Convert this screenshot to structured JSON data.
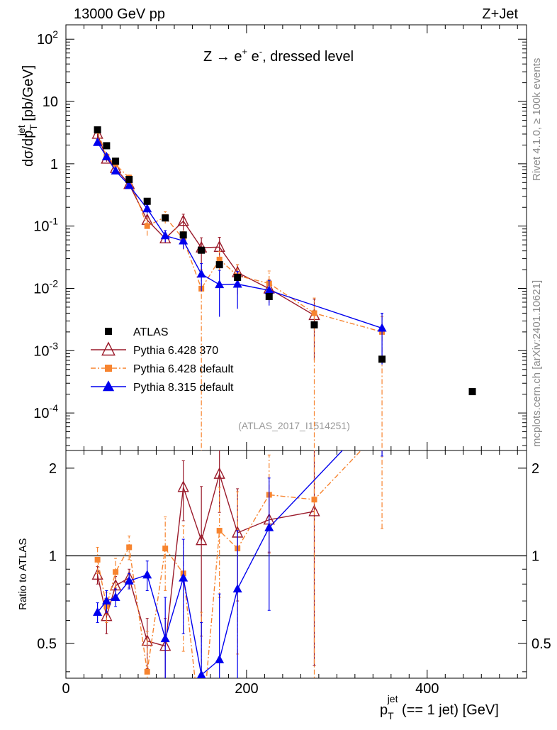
{
  "header": {
    "left": "13000 GeV pp",
    "right": "Z+Jet"
  },
  "side": {
    "rivet": "Rivet 4.1.0, ≥ 100k events",
    "mcplots": "mcplots.cern.ch [arXiv:2401.10621]"
  },
  "watermark": "(ATLAS_2017_I1514251)",
  "process": {
    "prefix": "Z → e",
    "plus": "+",
    "mid": " e",
    "minus": "-",
    "suffix": ", dressed level"
  },
  "axes": {
    "ylabel_main": {
      "a": "dσ/dp",
      "sup": "jet",
      "sub": "T",
      "b": " [pb/GeV]"
    },
    "ylabel_ratio": "Ratio to ATLAS",
    "xlabel": {
      "p": "p",
      "sup": "jet",
      "sub": "T",
      "rest": " (== 1 jet) [GeV]"
    },
    "xticks": [
      "0",
      "200",
      "400"
    ],
    "yticks_main": [
      {
        "v": 100,
        "base": "10",
        "exp": "2"
      },
      {
        "v": 10,
        "base": "10",
        "exp": ""
      },
      {
        "v": 1,
        "base": "1",
        "exp": ""
      },
      {
        "v": 0.1,
        "base": "10",
        "exp": "-1"
      },
      {
        "v": 0.01,
        "base": "10",
        "exp": "-2"
      },
      {
        "v": 0.001,
        "base": "10",
        "exp": "-3"
      },
      {
        "v": 0.0001,
        "base": "10",
        "exp": "-4"
      }
    ],
    "yticks_ratio": [
      "0.5",
      "1",
      "2"
    ]
  },
  "legend": [
    {
      "label": "ATLAS",
      "color": "#000000"
    },
    {
      "label": "Pythia 6.428 370",
      "color": "#9a1a2a"
    },
    {
      "label": "Pythia 6.428 default",
      "color": "#f7842f"
    },
    {
      "label": "Pythia 8.315 default",
      "color": "#0000ee"
    }
  ],
  "chart_data": {
    "type": "scatter",
    "xlim": [
      0,
      510
    ],
    "ylim_main": [
      2.5e-05,
      170
    ],
    "ylim_ratio": [
      0.38,
      2.3
    ],
    "yscale": "log",
    "series": [
      {
        "name": "ATLAS",
        "x": [
          35,
          45,
          55,
          70,
          90,
          110,
          130,
          150,
          170,
          190,
          225,
          275,
          350,
          450
        ],
        "y": [
          3.5,
          1.95,
          1.1,
          0.56,
          0.25,
          0.135,
          0.072,
          0.041,
          0.024,
          0.015,
          0.0074,
          0.0026,
          0.00073,
          0.00022
        ]
      },
      {
        "name": "Pythia 6.428 370",
        "x": [
          35,
          45,
          55,
          70,
          90,
          110,
          130,
          150,
          170,
          190,
          225,
          275
        ],
        "y": [
          3.0,
          1.2,
          0.85,
          0.47,
          0.125,
          0.063,
          0.12,
          0.045,
          0.046,
          0.018,
          0.0099,
          0.0037
        ],
        "err_lo": [
          0.4,
          0.12,
          0.1,
          0.05,
          0.02,
          0.01,
          0.035,
          0.025,
          0.025,
          0.006,
          0.004,
          0.003
        ],
        "err_hi": [
          0.4,
          0.12,
          0.1,
          0.05,
          0.02,
          0.01,
          0.035,
          0.02,
          0.02,
          0.006,
          0.004,
          0.003
        ],
        "ratio": [
          0.86,
          0.62,
          0.79,
          0.84,
          0.51,
          0.49,
          1.72,
          1.13,
          1.91,
          1.2,
          1.33,
          1.42
        ],
        "ratio_err_lo": [
          0.06,
          0.08,
          0.06,
          0.06,
          0.1,
          0.12,
          0.4,
          0.6,
          0.5,
          0.5,
          0.3,
          1.0
        ],
        "ratio_err_hi": [
          0.06,
          0.08,
          0.06,
          0.06,
          0.1,
          0.12,
          0.4,
          0.6,
          0.5,
          0.5,
          0.3,
          1.0
        ]
      },
      {
        "name": "Pythia 6.428 default",
        "x": [
          35,
          45,
          55,
          70,
          90,
          110,
          130,
          150,
          170,
          190,
          225,
          275,
          350
        ],
        "y": [
          3.4,
          1.3,
          0.97,
          0.6,
          0.1,
          0.14,
          0.062,
          0.0099,
          0.029,
          0.016,
          0.012,
          0.004,
          0.002
        ],
        "err_lo": [
          0.4,
          0.15,
          0.12,
          0.06,
          0.03,
          0.03,
          0.02,
          0.0099,
          0.01,
          0.008,
          0.006,
          0.004,
          0.002
        ],
        "err_hi": [
          0.4,
          0.15,
          0.12,
          0.06,
          0.03,
          0.03,
          0.02,
          0.01,
          0.01,
          0.008,
          0.007,
          0.003,
          0.0015
        ],
        "ratio": [
          0.97,
          0.67,
          0.88,
          1.07,
          0.4,
          1.06,
          0.87,
          0.24,
          1.22,
          1.06,
          1.62,
          1.56,
          2.74
        ],
        "ratio_err_lo": [
          0.1,
          0.08,
          0.1,
          0.1,
          0.15,
          0.3,
          0.4,
          0.4,
          0.5,
          0.6,
          0.6,
          1.5,
          1.5
        ],
        "ratio_err_hi": [
          0.1,
          0.08,
          0.1,
          0.1,
          0.15,
          0.3,
          0.4,
          0.4,
          0.5,
          0.6,
          0.6,
          1.5,
          1.5
        ]
      },
      {
        "name": "Pythia 8.315 default",
        "x": [
          35,
          45,
          55,
          70,
          90,
          110,
          130,
          150,
          170,
          190,
          225,
          350
        ],
        "y": [
          2.2,
          1.3,
          0.77,
          0.45,
          0.19,
          0.07,
          0.058,
          0.017,
          0.0115,
          0.0117,
          0.0093,
          0.0023
        ],
        "err_lo": [
          0.25,
          0.12,
          0.08,
          0.05,
          0.03,
          0.015,
          0.015,
          0.008,
          0.008,
          0.007,
          0.004,
          0.0017
        ],
        "err_hi": [
          0.25,
          0.12,
          0.08,
          0.05,
          0.03,
          0.015,
          0.015,
          0.008,
          0.008,
          0.007,
          0.004,
          0.0017
        ],
        "ratio": [
          0.64,
          0.7,
          0.72,
          0.82,
          0.86,
          0.52,
          0.84,
          0.39,
          0.44,
          0.77,
          1.25,
          3.2
        ],
        "ratio_err_lo": [
          0.05,
          0.06,
          0.05,
          0.05,
          0.1,
          0.2,
          0.3,
          0.2,
          0.3,
          0.45,
          0.6,
          1.0
        ],
        "ratio_err_hi": [
          0.05,
          0.06,
          0.05,
          0.05,
          0.1,
          0.2,
          0.3,
          0.2,
          0.3,
          0.45,
          0.6,
          1.0
        ]
      }
    ]
  }
}
